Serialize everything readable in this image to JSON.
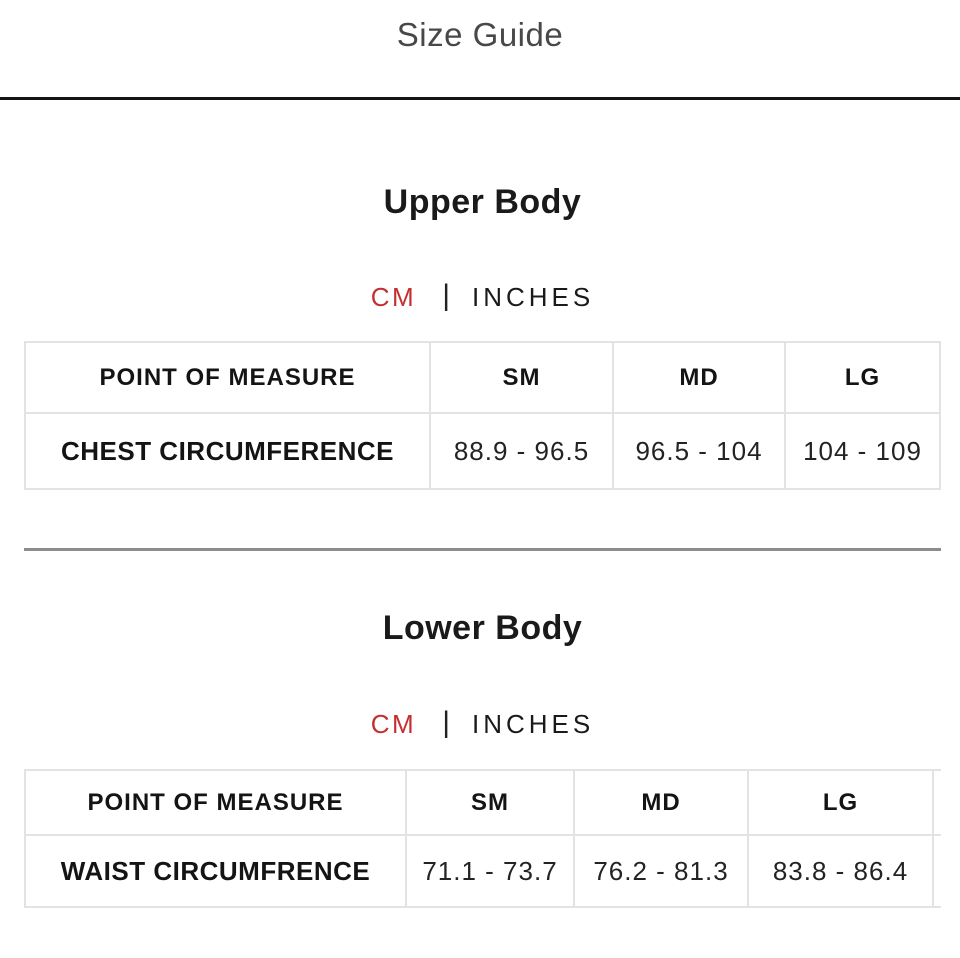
{
  "modal": {
    "title": "Size Guide"
  },
  "colors": {
    "accent_red": "#c43031",
    "text_dark": "#1a1a1a",
    "title_gray": "#484848",
    "table_border": "#e3e3e3",
    "section_divider": "#8c8c8c",
    "header_rule": "#141414"
  },
  "sections": [
    {
      "heading": "Upper Body",
      "units": {
        "cm": "CM",
        "separator": "|",
        "inches": "INCHES",
        "selected": "CM"
      },
      "table": {
        "headers": [
          "POINT OF MEASURE",
          "SM",
          "MD",
          "LG"
        ],
        "rows": [
          {
            "label": "CHEST CIRCUMFERENCE",
            "values": [
              "88.9 - 96.5",
              "96.5 - 104",
              "104 - 109"
            ]
          }
        ]
      }
    },
    {
      "heading": "Lower Body",
      "units": {
        "cm": "CM",
        "separator": "|",
        "inches": "INCHES",
        "selected": "CM"
      },
      "table": {
        "headers": [
          "POINT OF MEASURE",
          "SM",
          "MD",
          "LG"
        ],
        "rows": [
          {
            "label": "WAIST CIRCUMFRENCE",
            "values": [
              "71.1 - 73.7",
              "76.2 - 81.3",
              "83.8 - 86.4"
            ]
          }
        ]
      }
    }
  ]
}
